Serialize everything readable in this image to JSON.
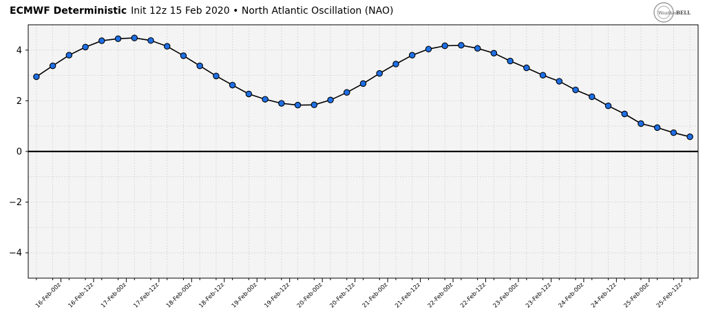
{
  "header": {
    "model": "ECMWF Deterministic",
    "init": "Init 12z 15 Feb 2020",
    "separator": "•",
    "index_name": "North Atlantic Oscillation (NAO)"
  },
  "logo": {
    "text_left": "Weather",
    "text_right": "BELL"
  },
  "colors": {
    "plot_bg": "#f4f4f4",
    "grid": "#d4d4d4",
    "line": "#000000",
    "marker_fill": "#1f6fe5",
    "marker_edge": "#000000",
    "zero_line": "#000000"
  },
  "chart_data": {
    "type": "line",
    "title": "ECMWF Deterministic Init 12z 15 Feb 2020 • North Atlantic Oscillation (NAO)",
    "xlabel": "",
    "ylabel": "",
    "ylim": [
      -5,
      5
    ],
    "yticks": [
      -4,
      -2,
      0,
      2,
      4
    ],
    "ytick_labels": [
      "−4",
      "−2",
      "0",
      "2",
      "4"
    ],
    "xlim": [
      -0.5,
      40.5
    ],
    "grid": true,
    "xtick_labels": [
      "16-Feb-00z",
      "16-Feb-12z",
      "17-Feb-00z",
      "17-Feb-12z",
      "18-Feb-00z",
      "18-Feb-12z",
      "19-Feb-00z",
      "19-Feb-12z",
      "20-Feb-00z",
      "20-Feb-12z",
      "21-Feb-00z",
      "21-Feb-12z",
      "22-Feb-00z",
      "22-Feb-12z",
      "23-Feb-00z",
      "23-Feb-12z",
      "24-Feb-00z",
      "24-Feb-12z",
      "25-Feb-00z",
      "25-Feb-12z"
    ],
    "xtick_positions": [
      1.5,
      3.5,
      5.5,
      7.5,
      9.5,
      11.5,
      13.5,
      15.5,
      17.5,
      19.5,
      21.5,
      23.5,
      25.5,
      27.5,
      29.5,
      31.5,
      33.5,
      35.5,
      37.5,
      39.5
    ],
    "series": [
      {
        "name": "NAO",
        "x": [
          0,
          1,
          2,
          3,
          4,
          5,
          6,
          7,
          8,
          9,
          10,
          11,
          12,
          13,
          14,
          15,
          16,
          17,
          18,
          19,
          20,
          21,
          22,
          23,
          24,
          25,
          26,
          27,
          28,
          29,
          30,
          31,
          32,
          33,
          34,
          35,
          36,
          37,
          38,
          39,
          40
        ],
        "values": [
          2.95,
          3.38,
          3.8,
          4.12,
          4.37,
          4.45,
          4.48,
          4.38,
          4.15,
          3.78,
          3.38,
          2.98,
          2.62,
          2.27,
          2.06,
          1.9,
          1.83,
          1.84,
          2.03,
          2.33,
          2.68,
          3.08,
          3.45,
          3.8,
          4.04,
          4.17,
          4.19,
          4.07,
          3.88,
          3.57,
          3.3,
          3.01,
          2.77,
          2.43,
          2.16,
          1.8,
          1.48,
          1.1,
          0.94,
          0.74,
          0.58
        ]
      }
    ]
  }
}
